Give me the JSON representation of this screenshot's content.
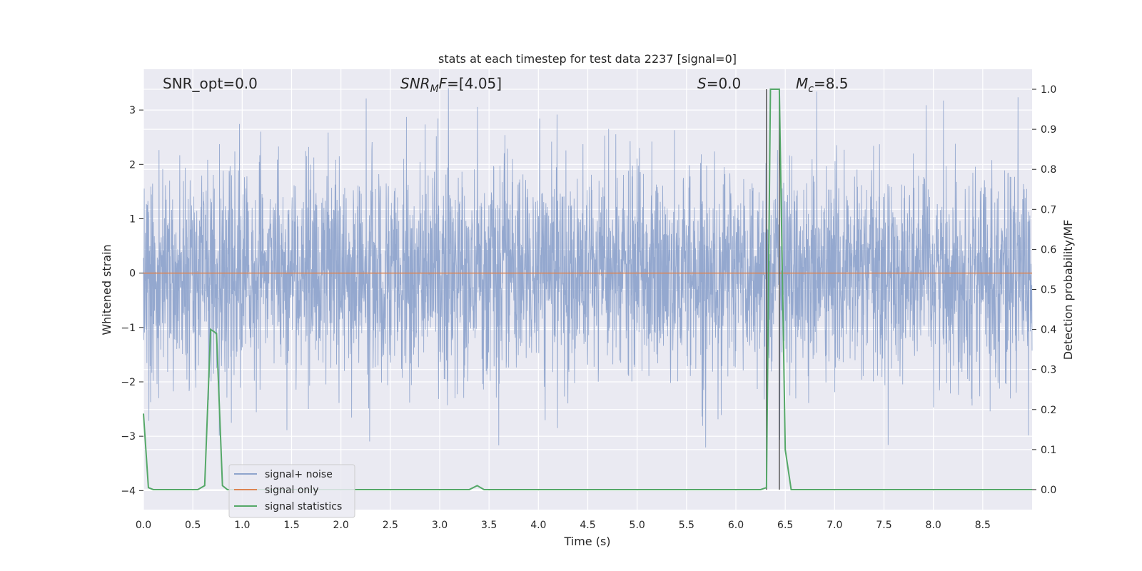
{
  "chart_data": {
    "type": "line",
    "title": "stats at each timestep for test data 2237 [signal=0]",
    "xlabel": "Time (s)",
    "ylabel": "Whitened strain",
    "ylabel_right": "Detection probability/MF",
    "xlim": [
      0.0,
      9.0
    ],
    "ylim": [
      -4.35,
      3.75
    ],
    "ylim_right": [
      -0.05,
      1.05
    ],
    "x_ticks": [
      "0.0",
      "0.5",
      "1.0",
      "1.5",
      "2.0",
      "2.5",
      "3.0",
      "3.5",
      "4.0",
      "4.5",
      "5.0",
      "5.5",
      "6.0",
      "6.5",
      "7.0",
      "7.5",
      "8.0",
      "8.5"
    ],
    "y_ticks": [
      "3",
      "2",
      "1",
      "0",
      "−1",
      "−2",
      "−3",
      "−4"
    ],
    "y_ticks_right": [
      "1.0",
      "0.9",
      "0.8",
      "0.7",
      "0.6",
      "0.5",
      "0.4",
      "0.3",
      "0.2",
      "0.1",
      "0.0"
    ],
    "grid": true,
    "legend_position": "lower-left",
    "annotations": {
      "snr_opt": "SNR_opt=0.0",
      "snr_mf": "=[4.05]",
      "snr_mf_base": "SNR",
      "snr_mf_sub": "M",
      "snr_mf_tail": "F",
      "s_base": "S",
      "s_value": "=0.0",
      "mc_base": "M",
      "mc_sub": "c",
      "mc_value": "=8.5"
    },
    "vertical_lines": [
      6.31,
      6.44
    ],
    "series": [
      {
        "name": "signal+ noise",
        "color": "#8fa4cc",
        "description": "whitened strain noise, approx. gaussian, sigma ~1, range -4 to 3.4 over 0-9 s"
      },
      {
        "name": "signal only",
        "color": "#dd8452",
        "constant": 0.0
      },
      {
        "name": "signal statistics",
        "color": "#55a868",
        "axis": "right",
        "x": [
          0.0,
          0.05,
          0.1,
          0.2,
          0.3,
          0.4,
          0.5,
          0.55,
          0.62,
          0.68,
          0.74,
          0.8,
          0.85,
          0.9,
          1.0,
          1.5,
          2.0,
          2.5,
          3.0,
          3.3,
          3.38,
          3.45,
          3.5,
          4.0,
          4.5,
          5.0,
          5.5,
          6.0,
          6.25,
          6.31,
          6.35,
          6.38,
          6.44,
          6.5,
          6.56,
          6.62,
          6.7,
          7.0,
          7.5,
          8.0,
          8.5,
          9.0
        ],
        "values": [
          0.19,
          0.005,
          0.0,
          0.0,
          0.0,
          0.0,
          0.0,
          0.0,
          0.01,
          0.4,
          0.39,
          0.01,
          0.0,
          0.0,
          0.0,
          0.0,
          0.0,
          0.0,
          0.0,
          0.0,
          0.01,
          0.0,
          0.0,
          0.0,
          0.0,
          0.0,
          0.0,
          0.0,
          0.0,
          0.005,
          1.0,
          1.0,
          1.0,
          0.1,
          0.0,
          0.0,
          0.0,
          0.0,
          0.0,
          0.0,
          0.0,
          0.0
        ]
      }
    ]
  }
}
